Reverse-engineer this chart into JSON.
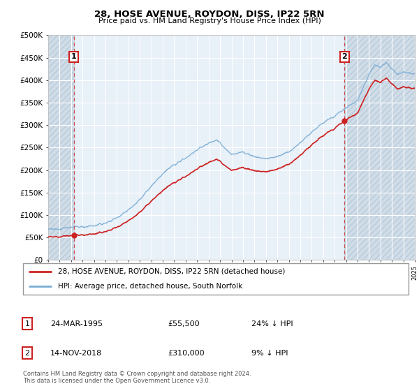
{
  "title": "28, HOSE AVENUE, ROYDON, DISS, IP22 5RN",
  "subtitle": "Price paid vs. HM Land Registry's House Price Index (HPI)",
  "hpi_color": "#7aadd4",
  "price_color": "#cc2222",
  "bg_plot": "#e8f0f8",
  "bg_hatch_color": "#d0dce8",
  "grid_color": "#ffffff",
  "ylim": [
    0,
    500000
  ],
  "yticks": [
    0,
    50000,
    100000,
    150000,
    200000,
    250000,
    300000,
    350000,
    400000,
    450000,
    500000
  ],
  "ytick_labels": [
    "£0",
    "£50K",
    "£100K",
    "£150K",
    "£200K",
    "£250K",
    "£300K",
    "£350K",
    "£400K",
    "£450K",
    "£500K"
  ],
  "sale1_date": 1995.23,
  "sale1_price": 55500,
  "sale2_date": 2018.87,
  "sale2_price": 310000,
  "legend_label1": "28, HOSE AVENUE, ROYDON, DISS, IP22 5RN (detached house)",
  "legend_label2": "HPI: Average price, detached house, South Norfolk",
  "annotation1": "1",
  "annotation2": "2",
  "table_row1": [
    "1",
    "24-MAR-1995",
    "£55,500",
    "24% ↓ HPI"
  ],
  "table_row2": [
    "2",
    "14-NOV-2018",
    "£310,000",
    "9% ↓ HPI"
  ],
  "footer": "Contains HM Land Registry data © Crown copyright and database right 2024.\nThis data is licensed under the Open Government Licence v3.0.",
  "xmin": 1993,
  "xmax": 2025
}
